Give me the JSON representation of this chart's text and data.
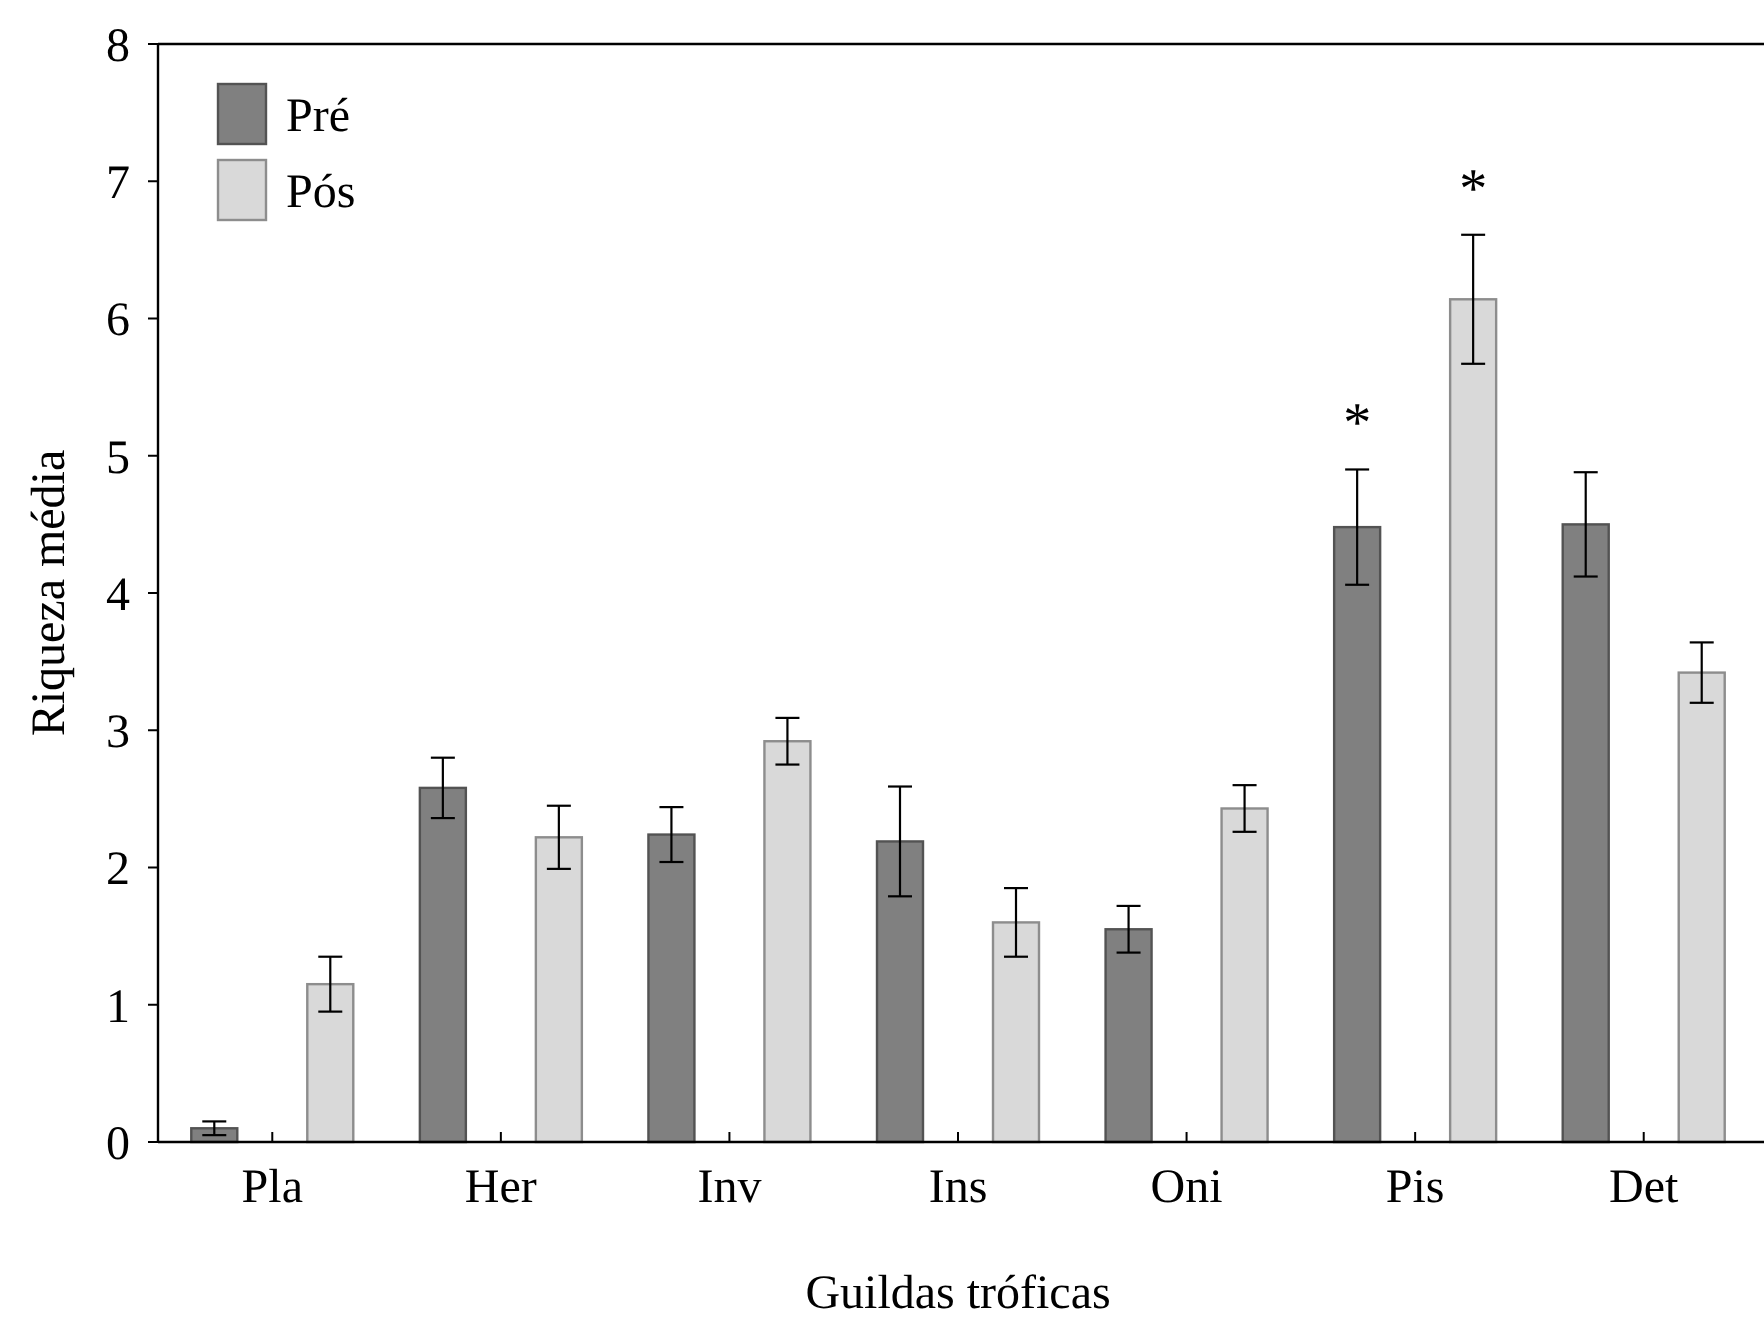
{
  "chart_data": {
    "type": "bar",
    "xlabel": "Guildas tróficas",
    "ylabel": "Riqueza média",
    "categories": [
      "Pla",
      "Her",
      "Inv",
      "Ins",
      "Oni",
      "Pis",
      "Det"
    ],
    "series": [
      {
        "name": "Pré",
        "color": "#808080",
        "values": [
          0.1,
          2.58,
          2.24,
          2.19,
          1.55,
          4.48,
          4.5
        ],
        "errors": [
          0.05,
          0.22,
          0.2,
          0.4,
          0.17,
          0.42,
          0.38
        ]
      },
      {
        "name": "Pós",
        "color": "#d9d9d9",
        "values": [
          1.15,
          2.22,
          2.92,
          1.6,
          2.43,
          6.14,
          3.42
        ],
        "errors": [
          0.2,
          0.23,
          0.17,
          0.25,
          0.17,
          0.47,
          0.22
        ]
      }
    ],
    "ylim": [
      0,
      8
    ],
    "yticks": [
      0,
      1,
      2,
      3,
      4,
      5,
      6,
      7,
      8
    ],
    "grid": false,
    "legend": "top left",
    "annotations": [
      "*",
      "*"
    ]
  }
}
